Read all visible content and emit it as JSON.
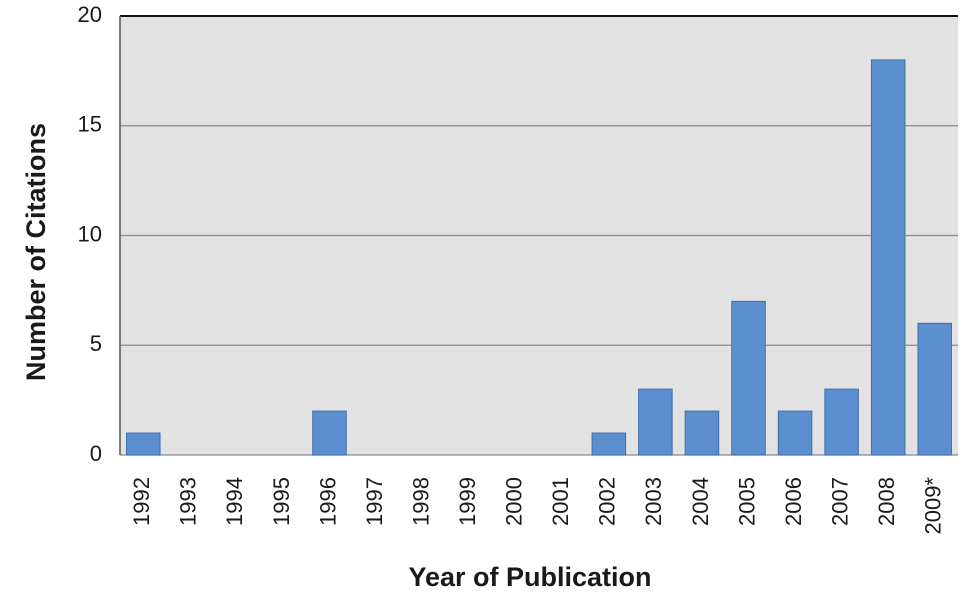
{
  "chart_data": {
    "type": "bar",
    "x_label": "Year of Publication",
    "y_label": "Number of Citations",
    "categories": [
      "1992",
      "1993",
      "1994",
      "1995",
      "1996",
      "1997",
      "1998",
      "1999",
      "2000",
      "2001",
      "2002",
      "2003",
      "2004",
      "2005",
      "2006",
      "2007",
      "2008",
      "2009*"
    ],
    "values": [
      1,
      0,
      0,
      0,
      2,
      0,
      0,
      0,
      0,
      0,
      1,
      3,
      2,
      7,
      2,
      3,
      18,
      6
    ],
    "color": "#5b8fcf",
    "ylim": [
      0,
      20
    ],
    "yticks": [
      0,
      5,
      10,
      15,
      20
    ],
    "grid": true
  }
}
